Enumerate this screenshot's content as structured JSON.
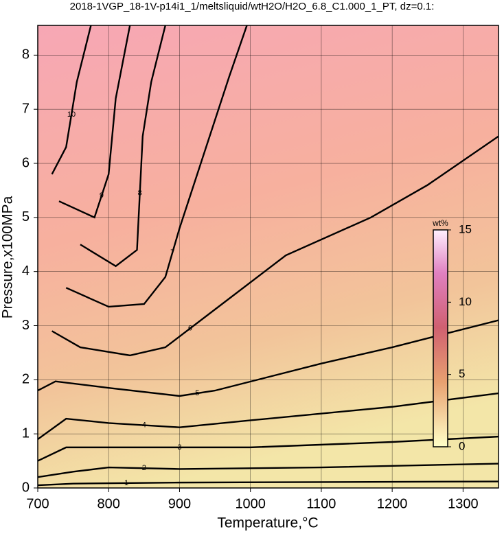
{
  "chart_data": {
    "type": "contour",
    "title": "2018-1VGP_18-1V-p14i1_1/meltsliquid/wtH2O/H2O_6.8_C1.000_1_PT, dz=0.1:",
    "xlabel": "Temperature,°C",
    "ylabel": "Pressure,x100MPa",
    "xlim": [
      700,
      1350
    ],
    "ylim": [
      0,
      8.55
    ],
    "xticks": [
      700,
      800,
      900,
      1000,
      1100,
      1200,
      1300
    ],
    "yticks": [
      0,
      1,
      2,
      3,
      4,
      5,
      6,
      7,
      8
    ],
    "grid": true,
    "contours": [
      {
        "level": 1,
        "x": [
          700,
          750,
          900,
          1350
        ],
        "y": [
          0.05,
          0.08,
          0.1,
          0.12
        ]
      },
      {
        "level": 2,
        "x": [
          700,
          750,
          800,
          900,
          1100,
          1350
        ],
        "y": [
          0.2,
          0.3,
          0.38,
          0.35,
          0.38,
          0.45
        ]
      },
      {
        "level": 3,
        "x": [
          700,
          740,
          800,
          1000,
          1200,
          1350
        ],
        "y": [
          0.5,
          0.75,
          0.75,
          0.75,
          0.85,
          0.95
        ]
      },
      {
        "level": 4,
        "x": [
          700,
          740,
          800,
          900,
          1000,
          1200,
          1350
        ],
        "y": [
          0.9,
          1.28,
          1.2,
          1.12,
          1.25,
          1.5,
          1.75
        ]
      },
      {
        "level": 5,
        "x": [
          700,
          725,
          800,
          900,
          950,
          1100,
          1200,
          1350
        ],
        "y": [
          1.8,
          1.97,
          1.85,
          1.7,
          1.8,
          2.3,
          2.6,
          3.1
        ]
      },
      {
        "level": 6,
        "x": [
          720,
          760,
          830,
          880,
          950,
          1050,
          1170,
          1250,
          1350
        ],
        "y": [
          2.9,
          2.6,
          2.45,
          2.6,
          3.3,
          4.3,
          5.0,
          5.6,
          6.5
        ]
      },
      {
        "level": 7,
        "x": [
          740,
          800,
          850,
          880,
          900,
          930,
          970,
          995
        ],
        "y": [
          3.7,
          3.35,
          3.4,
          3.9,
          4.8,
          6.0,
          7.6,
          8.55
        ]
      },
      {
        "level": 8,
        "x": [
          760,
          810,
          840,
          848,
          860,
          880
        ],
        "y": [
          4.5,
          4.1,
          4.4,
          6.5,
          7.5,
          8.55
        ]
      },
      {
        "level": 9,
        "x": [
          730,
          780,
          800,
          810,
          830
        ],
        "y": [
          5.3,
          5.0,
          5.8,
          7.2,
          8.55
        ]
      },
      {
        "level": 10,
        "x": [
          720,
          740,
          755,
          775
        ],
        "y": [
          5.8,
          6.3,
          7.5,
          8.55
        ]
      }
    ],
    "colorbar": {
      "label": "wt%",
      "lim": [
        0,
        15
      ],
      "ticks": [
        0,
        5,
        10,
        15
      ]
    }
  }
}
